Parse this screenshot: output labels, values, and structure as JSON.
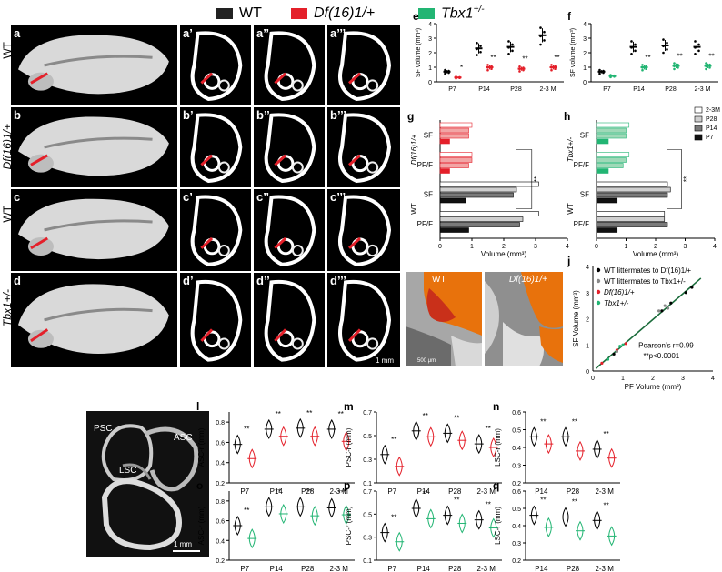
{
  "legend": {
    "items": [
      {
        "label": "WT",
        "color": "#222222"
      },
      {
        "label": "Df(16)1/+",
        "color": "#e4202a"
      },
      {
        "label": "Tbx1",
        "sup": "+/-",
        "color": "#22b573"
      }
    ]
  },
  "rows": [
    {
      "label": "WT",
      "italic": false,
      "panels": [
        "a",
        "a’",
        "a’’",
        "a’’’"
      ]
    },
    {
      "label": "Df(16)1/+",
      "italic": true,
      "panels": [
        "b",
        "b’",
        "b’’",
        "b’’’"
      ]
    },
    {
      "label": "WT",
      "italic": false,
      "panels": [
        "c",
        "c’",
        "c’’",
        "c’’’"
      ]
    },
    {
      "label": "Tbx1+/-",
      "italic": true,
      "panels": [
        "d",
        "d’",
        "d’’",
        "d’’’"
      ]
    }
  ],
  "scalebar_ct": "1 mm",
  "panel_i": {
    "letter": "i",
    "left_label": "WT",
    "right_label": "Df(16)1/+",
    "scalebar": "500 μm"
  },
  "panel_k": {
    "letter": "k",
    "psc": "PSC",
    "asc": "ASC",
    "lsc": "LSC",
    "scalebar": "1 mm"
  },
  "colors": {
    "wt": "#222222",
    "df": "#e4202a",
    "tbx": "#22b573",
    "wt_light": "#888888"
  },
  "chart_data": [
    {
      "panel": "e",
      "type": "bar",
      "ylabel": "SF volume (mm³)",
      "categories": [
        "P7",
        "P14",
        "P28",
        "2-3 M"
      ],
      "ylim": [
        0,
        4
      ],
      "yticks": [
        0,
        1,
        2,
        3,
        4
      ],
      "series": [
        {
          "values": [
            0.7,
            2.3,
            2.4,
            3.2
          ]
        },
        {
          "values": [
            0.3,
            1.0,
            0.9,
            1.0
          ]
        }
      ],
      "sig": [
        "*",
        "**",
        "**",
        "**"
      ]
    },
    {
      "panel": "f",
      "type": "bar",
      "ylabel": "SF volume (mm³)",
      "categories": [
        "P7",
        "P14",
        "P28",
        "2-3 M"
      ],
      "ylim": [
        0,
        4
      ],
      "yticks": [
        0,
        1,
        2,
        3,
        4
      ],
      "series": [
        {
          "values": [
            0.7,
            2.4,
            2.5,
            2.4
          ]
        },
        {
          "values": [
            0.4,
            1.0,
            1.1,
            1.1
          ]
        }
      ],
      "sig": [
        "",
        "**",
        "**",
        "**"
      ]
    },
    {
      "panel": "g",
      "type": "bar",
      "ylabel": "Df(16)1/+",
      "ylabel2": "WT",
      "xlabel": "Volume (mm³)",
      "xlim": [
        0,
        4
      ],
      "xticks": [
        0,
        1,
        2,
        3,
        4
      ],
      "groups": [
        {
          "name": "SF",
          "values": [
            1.0,
            0.9,
            0.9,
            0.3
          ]
        },
        {
          "name": "PF/F",
          "values": [
            1.0,
            1.0,
            0.9,
            0.3
          ]
        },
        {
          "name": "SF",
          "values": [
            3.1,
            2.4,
            2.3,
            0.8
          ]
        },
        {
          "name": "PF/F",
          "values": [
            3.1,
            2.6,
            2.5,
            0.9
          ]
        }
      ],
      "sig": "**"
    },
    {
      "panel": "h",
      "type": "bar",
      "ylabel": "Tbx1+/-",
      "ylabel2": "WT",
      "xlabel": "Volume (mm³)",
      "xlim": [
        0,
        4
      ],
      "xticks": [
        0,
        1,
        2,
        3,
        4
      ],
      "legend": [
        "2-3M",
        "P28",
        "P14",
        "P7"
      ],
      "groups": [
        {
          "name": "SF",
          "values": [
            1.1,
            1.0,
            1.0,
            0.4
          ]
        },
        {
          "name": "PF/F",
          "values": [
            1.1,
            1.0,
            0.9,
            0.4
          ]
        },
        {
          "name": "SF",
          "values": [
            2.4,
            2.5,
            2.4,
            0.7
          ]
        },
        {
          "name": "PF/F",
          "values": [
            2.3,
            2.3,
            2.4,
            0.7
          ]
        }
      ],
      "sig": "**"
    },
    {
      "panel": "j",
      "type": "scatter",
      "ylabel": "SF Volume (mm³)",
      "xlabel": "PF Volume (mm³)",
      "xlim": [
        0,
        4
      ],
      "ylim": [
        0,
        4
      ],
      "xticks": [
        0,
        1,
        2,
        3,
        4
      ],
      "yticks": [
        0,
        1,
        2,
        3,
        4
      ],
      "legend": [
        "WT littermates to Df(16)1/+",
        "WT littermates to Tbx1+/-",
        "Df(16)1/+",
        "Tbx1+/-"
      ],
      "stat1": "Pearson’s r=0.99",
      "stat2": "**p<0.0001"
    },
    {
      "panel": "l",
      "type": "violin",
      "ylabel": "ASC-r (mm)",
      "categories": [
        "P7",
        "P14",
        "P28",
        "2-3 M"
      ],
      "ylim": [
        0.2,
        0.9
      ],
      "yticks": [
        0.2,
        0.4,
        0.6,
        0.8
      ],
      "color": "df",
      "wt": [
        0.58,
        0.73,
        0.74,
        0.73
      ],
      "mut": [
        0.44,
        0.66,
        0.66,
        0.61
      ],
      "sig": [
        "**",
        "**",
        "**",
        "**"
      ]
    },
    {
      "panel": "m",
      "type": "violin",
      "ylabel": "PSC-r (mm)",
      "categories": [
        "P7",
        "P14",
        "P28",
        "2-3 M"
      ],
      "ylim": [
        0.1,
        0.7
      ],
      "yticks": [
        0.1,
        0.3,
        0.5,
        0.7
      ],
      "color": "df",
      "wt": [
        0.34,
        0.54,
        0.52,
        0.43
      ],
      "mut": [
        0.24,
        0.49,
        0.46,
        0.4
      ],
      "sig": [
        "**",
        "**",
        "**",
        "**"
      ]
    },
    {
      "panel": "n",
      "type": "violin",
      "ylabel": "LSC-r (mm)",
      "categories": [
        "P14",
        "P28",
        "2-3 M"
      ],
      "ylim": [
        0.2,
        0.6
      ],
      "yticks": [
        0.2,
        0.3,
        0.4,
        0.5,
        0.6
      ],
      "color": "df",
      "wt": [
        0.46,
        0.46,
        0.39
      ],
      "mut": [
        0.42,
        0.38,
        0.34
      ],
      "sig": [
        "**",
        "**",
        "**"
      ]
    },
    {
      "panel": "o",
      "type": "violin",
      "ylabel": "ASC-r (mm)",
      "categories": [
        "P7",
        "P14",
        "P28",
        "2-3 M"
      ],
      "ylim": [
        0.2,
        0.9
      ],
      "yticks": [
        0.2,
        0.4,
        0.6,
        0.8
      ],
      "color": "tbx",
      "wt": [
        0.55,
        0.74,
        0.74,
        0.73
      ],
      "mut": [
        0.42,
        0.67,
        0.65,
        0.66
      ],
      "sig": [
        "**",
        "**",
        "**",
        "**"
      ]
    },
    {
      "panel": "p",
      "type": "violin",
      "ylabel": "PSC-r (mm)",
      "categories": [
        "P7",
        "P14",
        "P28",
        "2-3 M"
      ],
      "ylim": [
        0.1,
        0.7
      ],
      "yticks": [
        0.1,
        0.3,
        0.5,
        0.7
      ],
      "color": "tbx",
      "wt": [
        0.34,
        0.55,
        0.49,
        0.45
      ],
      "mut": [
        0.26,
        0.46,
        0.42,
        0.38
      ],
      "sig": [
        "**",
        "**",
        "**",
        "**"
      ]
    },
    {
      "panel": "q",
      "type": "violin",
      "ylabel": "LSC-r (mm)",
      "categories": [
        "P14",
        "P28",
        "2-3 M"
      ],
      "ylim": [
        0.2,
        0.6
      ],
      "yticks": [
        0.2,
        0.3,
        0.4,
        0.5,
        0.6
      ],
      "color": "tbx",
      "wt": [
        0.46,
        0.45,
        0.43
      ],
      "mut": [
        0.39,
        0.37,
        0.34
      ],
      "sig": [
        "**",
        "**",
        "**"
      ]
    }
  ]
}
